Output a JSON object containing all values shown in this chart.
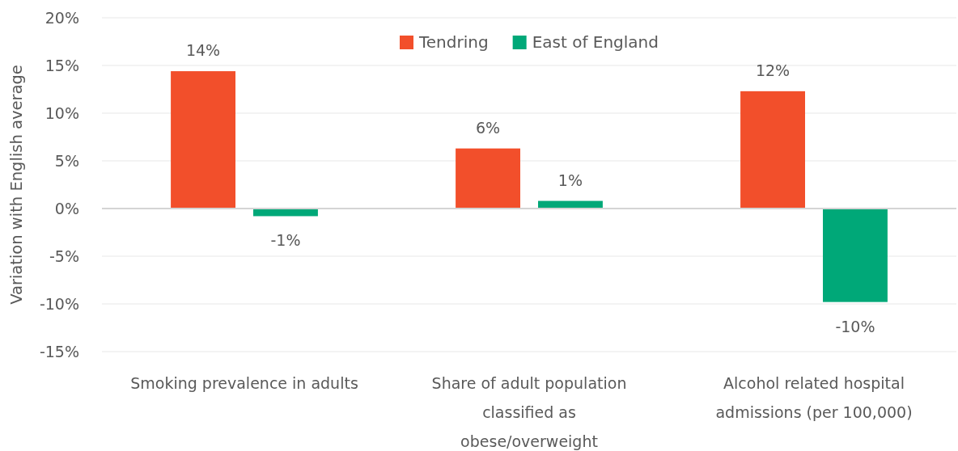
{
  "chart_data": {
    "type": "bar",
    "ylabel": "Variation with English average",
    "categories": [
      "Smoking prevalence in adults",
      "Share of adult population classified as obese/overweight",
      "Alcohol related hospital admissions (per 100,000)"
    ],
    "series": [
      {
        "name": "Tendring",
        "color": "#f24f2b",
        "values": [
          14.4,
          6.3,
          12.3
        ],
        "value_labels": [
          "14%",
          "6%",
          "12%"
        ]
      },
      {
        "name": "East of England",
        "color": "#00a878",
        "values": [
          -0.8,
          0.8,
          -9.8
        ],
        "value_labels": [
          "-1%",
          "1%",
          "-10%"
        ]
      }
    ],
    "ylim": [
      -15,
      20
    ],
    "yticks": [
      {
        "value": -15,
        "label": "-15%"
      },
      {
        "value": -10,
        "label": "-10%"
      },
      {
        "value": -5,
        "label": "-5%"
      },
      {
        "value": 0,
        "label": "0%"
      },
      {
        "value": 5,
        "label": "5%"
      },
      {
        "value": 10,
        "label": "10%"
      },
      {
        "value": 15,
        "label": "15%"
      },
      {
        "value": 20,
        "label": "20%"
      }
    ],
    "grid": "y",
    "legend": "top"
  }
}
